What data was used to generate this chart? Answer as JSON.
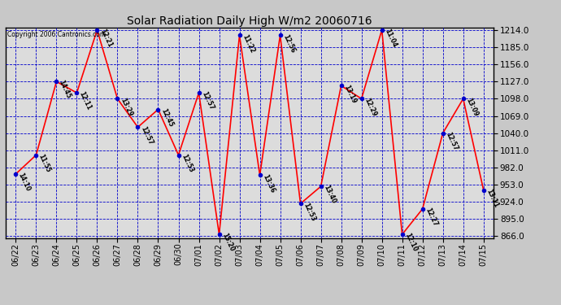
{
  "title": "Solar Radiation Daily High W/m2 20060716",
  "copyright_text": "Copyright 2006 Cantronics.com",
  "background_color": "#c8c8c8",
  "plot_bg_color": "#dcdcdc",
  "grid_color": "#0000cc",
  "line_color": "#ff0000",
  "marker_color": "#0000cc",
  "text_color": "#000000",
  "yticks": [
    866.0,
    895.0,
    924.0,
    953.0,
    982.0,
    1011.0,
    1040.0,
    1069.0,
    1098.0,
    1127.0,
    1156.0,
    1185.0,
    1214.0
  ],
  "dates": [
    "06/22",
    "06/23",
    "06/24",
    "06/25",
    "06/26",
    "06/27",
    "06/28",
    "06/29",
    "06/30",
    "07/01",
    "07/02",
    "07/03",
    "07/04",
    "07/05",
    "07/06",
    "07/07",
    "07/08",
    "07/09",
    "07/10",
    "07/11",
    "07/12",
    "07/13",
    "07/14",
    "07/15"
  ],
  "values": [
    971,
    1003,
    1127,
    1108,
    1214,
    1098,
    1050,
    1080,
    1003,
    1108,
    869,
    1205,
    969,
    1205,
    921,
    950,
    1120,
    1098,
    1214,
    869,
    912,
    1040,
    1098,
    944
  ],
  "labels": [
    "14:10",
    "11:55",
    "14:45",
    "12:11",
    "12:21",
    "13:29",
    "12:57",
    "12:45",
    "12:53",
    "12:57",
    "15:20",
    "11:22",
    "13:36",
    "12:56",
    "12:53",
    "13:40",
    "13:19",
    "12:29",
    "11:04",
    "12:10",
    "12:27",
    "12:57",
    "13:09",
    "13:11"
  ]
}
